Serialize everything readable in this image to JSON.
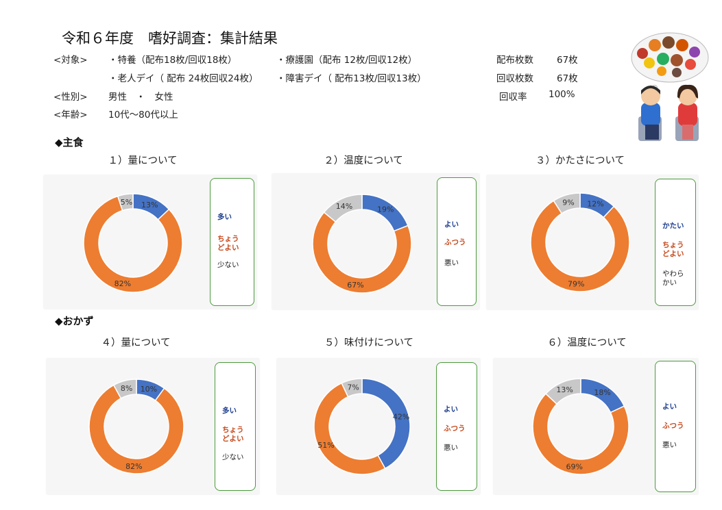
{
  "title": "令和６年度　嗜好調査：集計結果",
  "info": {
    "target_label": "<対象>",
    "target_line1_a": "・特養（配布18枚/回収18枚）",
    "target_line1_b": "・療護園（配布 12枚/回収12枚）",
    "target_line2_a": "・老人デイ（ 配布 24枚回収24枚）",
    "target_line2_b": "・障害デイ（ 配布13枚/回収13枚）",
    "gender_label": "<性別>",
    "gender_value": "男性　・　女性",
    "age_label": "<年齢>",
    "age_value": "10代～80代以上"
  },
  "stats": {
    "distributed_label": "配布枚数",
    "distributed_value": "67枚",
    "collected_label": "回収枚数",
    "collected_value": "67枚",
    "rate_label": "回収率",
    "rate_value": "100%"
  },
  "sections": {
    "main": "◆主食",
    "side": "◆おかず"
  },
  "colors": {
    "blue": "#4472c4",
    "orange": "#ed7d31",
    "gray": "#c8c8c8",
    "legend_border": "#4a9a3a",
    "legend_blue": "#1f3f8f",
    "legend_orange": "#c5471a"
  },
  "chart_data": [
    {
      "type": "pie",
      "title": "１）量について",
      "series": [
        {
          "name": "多い",
          "value": 13,
          "label": "13%"
        },
        {
          "name": "ちょうどよい",
          "value": 82,
          "label": "82%"
        },
        {
          "name": "少ない",
          "value": 5,
          "label": "5%"
        }
      ],
      "legend": [
        "多い",
        "ちょう\nどよい",
        "少ない"
      ]
    },
    {
      "type": "pie",
      "title": "２）温度について",
      "series": [
        {
          "name": "よい",
          "value": 19,
          "label": "19%"
        },
        {
          "name": "ふつう",
          "value": 67,
          "label": "67%"
        },
        {
          "name": "悪い",
          "value": 14,
          "label": "14%"
        }
      ],
      "legend": [
        "よい",
        "ふつう",
        "悪い"
      ]
    },
    {
      "type": "pie",
      "title": "３）かたさについて",
      "series": [
        {
          "name": "かたい",
          "value": 12,
          "label": "12%"
        },
        {
          "name": "ちょうどよい",
          "value": 79,
          "label": "79%"
        },
        {
          "name": "やわらかい",
          "value": 9,
          "label": "9%"
        }
      ],
      "legend": [
        "かたい",
        "ちょう\nどよい",
        "やわら\nかい"
      ]
    },
    {
      "type": "pie",
      "title": "４）量について",
      "series": [
        {
          "name": "多い",
          "value": 10,
          "label": "10%"
        },
        {
          "name": "ちょうどよい",
          "value": 82,
          "label": "82%"
        },
        {
          "name": "少ない",
          "value": 8,
          "label": "8%"
        }
      ],
      "legend": [
        "多い",
        "ちょう\nどよい",
        "少ない"
      ]
    },
    {
      "type": "pie",
      "title": "５）味付けについて",
      "series": [
        {
          "name": "よい",
          "value": 42,
          "label": "42%"
        },
        {
          "name": "ふつう",
          "value": 51,
          "label": "51%"
        },
        {
          "name": "悪い",
          "value": 7,
          "label": "7%"
        }
      ],
      "legend": [
        "よい",
        "ふつう",
        "悪い"
      ]
    },
    {
      "type": "pie",
      "title": "６）温度について",
      "series": [
        {
          "name": "よい",
          "value": 18,
          "label": "18%"
        },
        {
          "name": "ふつう",
          "value": 69,
          "label": "69%"
        },
        {
          "name": "悪い",
          "value": 13,
          "label": "13%"
        }
      ],
      "legend": [
        "よい",
        "ふつう",
        "悪い"
      ]
    }
  ]
}
